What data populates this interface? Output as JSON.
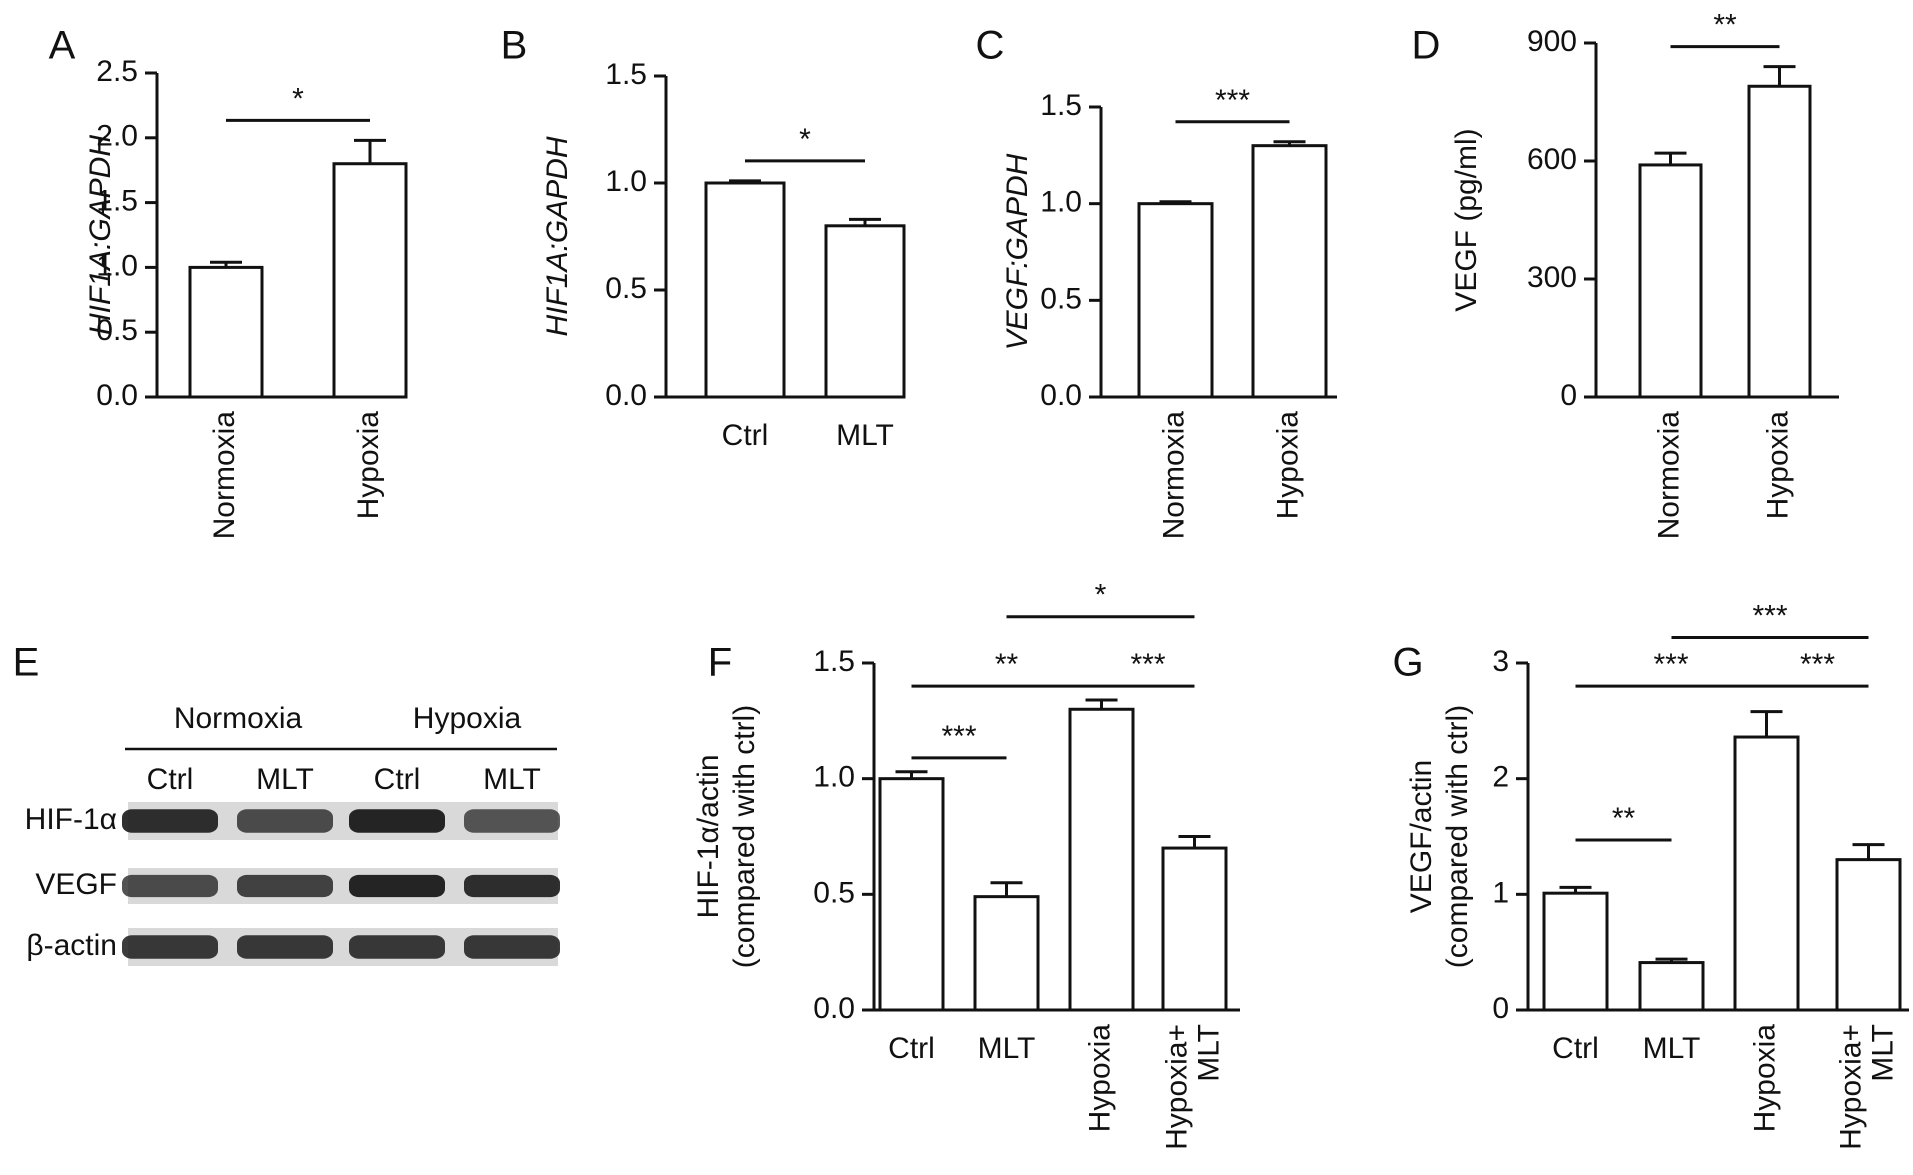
{
  "chart_data": [
    {
      "panel": "A",
      "type": "bar",
      "categories": [
        "Normoxia",
        "Hypoxia"
      ],
      "values": [
        1.0,
        1.8
      ],
      "errors": [
        0.04,
        0.18
      ],
      "ylabel": "HIF1A:GAPDH",
      "ylim": [
        0,
        2.5
      ],
      "yticks": [
        "0.0",
        "0.5",
        "1.0",
        "1.5",
        "2.0",
        "2.5"
      ],
      "significance": [
        {
          "from": 0,
          "to": 1,
          "label": "*"
        }
      ]
    },
    {
      "panel": "B",
      "type": "bar",
      "categories": [
        "Ctrl",
        "MLT"
      ],
      "values": [
        1.0,
        0.8
      ],
      "errors": [
        0.01,
        0.03
      ],
      "ylabel": "HIF1A:GAPDH",
      "ylim": [
        0,
        1.5
      ],
      "yticks": [
        "0.0",
        "0.5",
        "1.0",
        "1.5"
      ],
      "significance": [
        {
          "from": 0,
          "to": 1,
          "label": "*"
        }
      ]
    },
    {
      "panel": "C",
      "type": "bar",
      "categories": [
        "Normoxia",
        "Hypoxia"
      ],
      "values": [
        1.0,
        1.3
      ],
      "errors": [
        0.01,
        0.02
      ],
      "ylabel": "VEGF:GAPDH",
      "ylim": [
        0,
        1.5
      ],
      "yticks": [
        "0.0",
        "0.5",
        "1.0",
        "1.5"
      ],
      "significance": [
        {
          "from": 0,
          "to": 1,
          "label": "***"
        }
      ]
    },
    {
      "panel": "D",
      "type": "bar",
      "categories": [
        "Normoxia",
        "Hypoxia"
      ],
      "values": [
        590,
        790
      ],
      "errors": [
        30,
        50
      ],
      "ylabel": "VEGF (pg/ml)",
      "ylim": [
        0,
        900
      ],
      "yticks": [
        "0",
        "300",
        "600",
        "900"
      ],
      "significance": [
        {
          "from": 0,
          "to": 1,
          "label": "**"
        }
      ]
    },
    {
      "panel": "F",
      "type": "bar",
      "categories": [
        "Ctrl",
        "MLT",
        "Hypoxia",
        "Hypoxia+\nMLT"
      ],
      "values": [
        1.0,
        0.49,
        1.3,
        0.7
      ],
      "errors": [
        0.03,
        0.06,
        0.04,
        0.05
      ],
      "ylabel": "HIF-1α/actin\n(compared with ctrl)",
      "ylim": [
        0,
        1.5
      ],
      "yticks": [
        "0.0",
        "0.5",
        "1.0",
        "1.5"
      ],
      "significance": [
        {
          "from": 0,
          "to": 1,
          "label": "***",
          "level": 1.09
        },
        {
          "from": 0,
          "to": 2,
          "label": "**",
          "level": 1.4
        },
        {
          "from": 2,
          "to": 3,
          "label": "***",
          "level": 1.4
        },
        {
          "from": 1,
          "to": 3,
          "label": "*",
          "level": 1.7
        }
      ]
    },
    {
      "panel": "G",
      "type": "bar",
      "categories": [
        "Ctrl",
        "MLT",
        "Hypoxia",
        "Hypoxia+\nMLT"
      ],
      "values": [
        1.01,
        0.41,
        2.36,
        1.3
      ],
      "errors": [
        0.05,
        0.03,
        0.22,
        0.13
      ],
      "ylabel": "VEGF/actin\n(compared with ctrl)",
      "ylim": [
        0,
        3
      ],
      "yticks": [
        "0",
        "1",
        "2",
        "3"
      ],
      "significance": [
        {
          "from": 0,
          "to": 1,
          "label": "**",
          "level": 1.47
        },
        {
          "from": 0,
          "to": 2,
          "label": "***",
          "level": 2.8
        },
        {
          "from": 2,
          "to": 3,
          "label": "***",
          "level": 2.8
        },
        {
          "from": 1,
          "to": 3,
          "label": "***",
          "level": 3.22
        }
      ]
    }
  ],
  "panel_letters": [
    "A",
    "B",
    "C",
    "D",
    "E",
    "F",
    "G"
  ],
  "blot": {
    "groups": [
      "Normoxia",
      "Hypoxia"
    ],
    "lanes": [
      "Ctrl",
      "MLT",
      "Ctrl",
      "MLT"
    ],
    "rows": [
      {
        "label": "HIF-1α",
        "intensity": [
          0.9,
          0.75,
          0.95,
          0.7
        ]
      },
      {
        "label": "VEGF",
        "intensity": [
          0.75,
          0.8,
          0.95,
          0.9
        ]
      },
      {
        "label": "β-actin",
        "intensity": [
          0.85,
          0.85,
          0.85,
          0.85
        ]
      }
    ],
    "colors": {
      "band": "#1a1a1a",
      "background": "#d9d9d9"
    }
  }
}
